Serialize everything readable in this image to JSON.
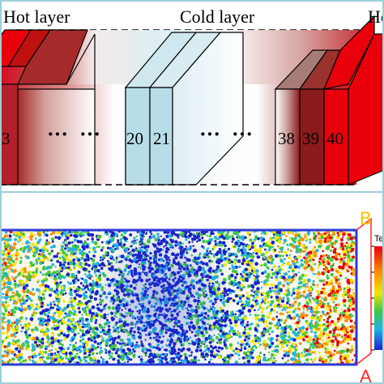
{
  "top_panel": {
    "hot_layer_left": "Hot layer",
    "cold_layer": "Cold layer",
    "hot_layer_right_partial": "Ho",
    "slab_numbers": {
      "n3": "3",
      "n20": "20",
      "n21": "21",
      "n38": "38",
      "n39": "39",
      "n40": "40"
    },
    "ellipsis_left": "···",
    "ellipsis_right": "···"
  },
  "bottom_panel": {
    "corner_B": "B",
    "corner_A": "A",
    "colorbar_label_partial": "Te"
  },
  "colors": {
    "hot": "#e8000b",
    "dark_red": "#8b1a1a",
    "cold": "#b7dde8",
    "panel_border": "#9fd0d8",
    "box_outline": "#2b3bd6",
    "marker_red": "#ff2a2a",
    "marker_yellow": "#f3c400"
  }
}
